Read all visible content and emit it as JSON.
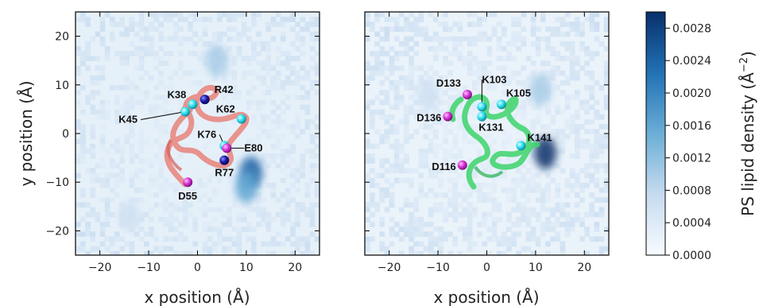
{
  "chart_data": [
    {
      "type": "heatmap",
      "panel": "left",
      "xlabel": "x position (Å)",
      "ylabel": "y position (Å)",
      "xlim": [
        -25,
        25
      ],
      "ylim": [
        -25,
        25
      ],
      "xticks": [
        -20,
        -10,
        0,
        10,
        20
      ],
      "yticks": [
        -20,
        -10,
        0,
        10,
        20
      ],
      "xtick_labels": [
        "−20",
        "−10",
        "0",
        "10",
        "20"
      ],
      "ytick_labels": [
        "−20",
        "−10",
        "0",
        "10",
        "20"
      ],
      "ribbon_color": "#e8827a",
      "hotspots": [
        {
          "x": 11,
          "y": -8,
          "value": 0.0024
        },
        {
          "x": 10,
          "y": -11,
          "value": 0.0016
        },
        {
          "x": 4,
          "y": 15,
          "value": 0.001
        },
        {
          "x": -14,
          "y": -17,
          "value": 0.0006
        }
      ],
      "residues": [
        {
          "label": "K38",
          "x": -1,
          "y": 6,
          "kind": "lysine"
        },
        {
          "label": "R42",
          "x": 1.5,
          "y": 7,
          "kind": "arginine"
        },
        {
          "label": "K45",
          "x": -2.5,
          "y": 4.5,
          "kind": "lysine"
        },
        {
          "label": "K62",
          "x": 9,
          "y": 3,
          "kind": "lysine"
        },
        {
          "label": "K76",
          "x": 5.5,
          "y": -2.5,
          "kind": "lysine"
        },
        {
          "label": "E80",
          "x": 6,
          "y": -3,
          "kind": "acidic"
        },
        {
          "label": "R77",
          "x": 5.5,
          "y": -5.5,
          "kind": "arginine"
        },
        {
          "label": "D55",
          "x": -2,
          "y": -10,
          "kind": "acidic"
        }
      ]
    },
    {
      "type": "heatmap",
      "panel": "right",
      "xlabel": "x position (Å)",
      "ylabel": "",
      "xlim": [
        -25,
        25
      ],
      "ylim": [
        -25,
        25
      ],
      "xticks": [
        -20,
        -10,
        0,
        10,
        20
      ],
      "xtick_labels": [
        "−20",
        "−10",
        "0",
        "10",
        "20"
      ],
      "ribbon_color": "#3dd36b",
      "hotspots": [
        {
          "x": 12,
          "y": -4,
          "value": 0.003
        },
        {
          "x": 11,
          "y": 9,
          "value": 0.001
        },
        {
          "x": -12,
          "y": 8,
          "value": 0.0006
        }
      ],
      "residues": [
        {
          "label": "D133",
          "x": -4,
          "y": 8,
          "kind": "acidic"
        },
        {
          "label": "K103",
          "x": -1,
          "y": 5.5,
          "kind": "lysine"
        },
        {
          "label": "K105",
          "x": 3,
          "y": 6,
          "kind": "lysine"
        },
        {
          "label": "D136",
          "x": -8,
          "y": 3.5,
          "kind": "acidic"
        },
        {
          "label": "K131",
          "x": -1,
          "y": 3.5,
          "kind": "lysine"
        },
        {
          "label": "K141",
          "x": 7,
          "y": -2.5,
          "kind": "lysine"
        },
        {
          "label": "D116",
          "x": -5,
          "y": -6.5,
          "kind": "acidic"
        }
      ]
    },
    {
      "type": "colorbar",
      "label": "PS lipid density (Å",
      "label_exponent": "−2",
      "label_close": ")",
      "min": 0,
      "max": 0.003,
      "ticks": [
        0.0,
        0.0004,
        0.0008,
        0.0012,
        0.0016,
        0.002,
        0.0024,
        0.0028
      ],
      "tick_labels": [
        "0.0000",
        "0.0004",
        "0.0008",
        "0.0012",
        "0.0016",
        "0.0020",
        "0.0024",
        "0.0028"
      ],
      "colormap": [
        "#f7fbff",
        "#c6dbef",
        "#6baed6",
        "#2171b5",
        "#08306b"
      ]
    }
  ],
  "colors": {
    "lysine": "#2ee0f0",
    "arginine": "#1a1aa8",
    "acidic": "#d633d6"
  }
}
